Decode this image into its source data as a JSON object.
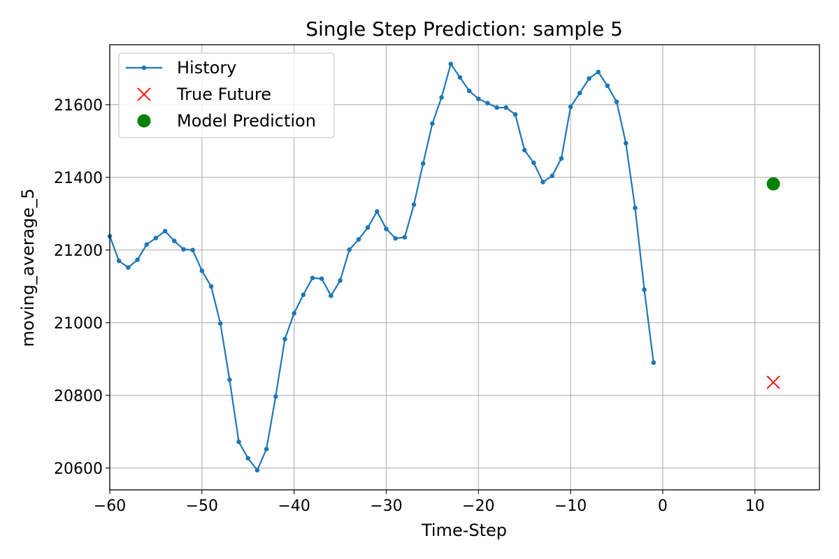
{
  "chart_data": {
    "type": "line",
    "title": "Single Step Prediction: sample 5",
    "xlabel": "Time-Step",
    "ylabel": "moving_average_5",
    "xlim": [
      -60,
      17
    ],
    "ylim": [
      20540,
      21765
    ],
    "xticks": [
      -60,
      -50,
      -40,
      -30,
      -20,
      -10,
      0,
      10
    ],
    "xtick_labels": [
      "−60",
      "−50",
      "−40",
      "−30",
      "−20",
      "−10",
      "0",
      "10"
    ],
    "yticks": [
      20600,
      20800,
      21000,
      21200,
      21400,
      21600
    ],
    "ytick_labels": [
      "20600",
      "20800",
      "21000",
      "21200",
      "21400",
      "21600"
    ],
    "grid": true,
    "legend_position": "upper-left",
    "series": [
      {
        "name": "History",
        "kind": "line-with-markers",
        "color": "#1f77b4",
        "x": [
          -60,
          -59,
          -58,
          -57,
          -56,
          -55,
          -54,
          -53,
          -52,
          -51,
          -50,
          -49,
          -48,
          -47,
          -46,
          -45,
          -44,
          -43,
          -42,
          -41,
          -40,
          -39,
          -38,
          -37,
          -36,
          -35,
          -34,
          -33,
          -32,
          -31,
          -30,
          -29,
          -28,
          -27,
          -26,
          -25,
          -24,
          -23,
          -22,
          -21,
          -20,
          -19,
          -18,
          -17,
          -16,
          -15,
          -14,
          -13,
          -12,
          -11,
          -10,
          -9,
          -8,
          -7,
          -6,
          -5,
          -4,
          -3,
          -2,
          -1
        ],
        "y": [
          21238,
          21170,
          21152,
          21173,
          21215,
          21233,
          21252,
          21225,
          21202,
          21200,
          21143,
          21100,
          20998,
          20843,
          20672,
          20627,
          20594,
          20652,
          20797,
          20955,
          21026,
          21077,
          21123,
          21121,
          21074,
          21116,
          21201,
          21229,
          21262,
          21306,
          21258,
          21232,
          21235,
          21325,
          21438,
          21548,
          21620,
          21712,
          21675,
          21638,
          21616,
          21604,
          21592,
          21592,
          21573,
          21475,
          21440,
          21387,
          21404,
          21452,
          21594,
          21632,
          21672,
          21690,
          21652,
          21608,
          21494,
          21316,
          21091,
          20890
        ]
      },
      {
        "name": "True Future",
        "kind": "marker-x",
        "color": "#ff0000",
        "x": [
          12
        ],
        "y": [
          20836
        ]
      },
      {
        "name": "Model Prediction",
        "kind": "marker-circle",
        "color": "#008000",
        "x": [
          12
        ],
        "y": [
          21382
        ]
      }
    ]
  }
}
